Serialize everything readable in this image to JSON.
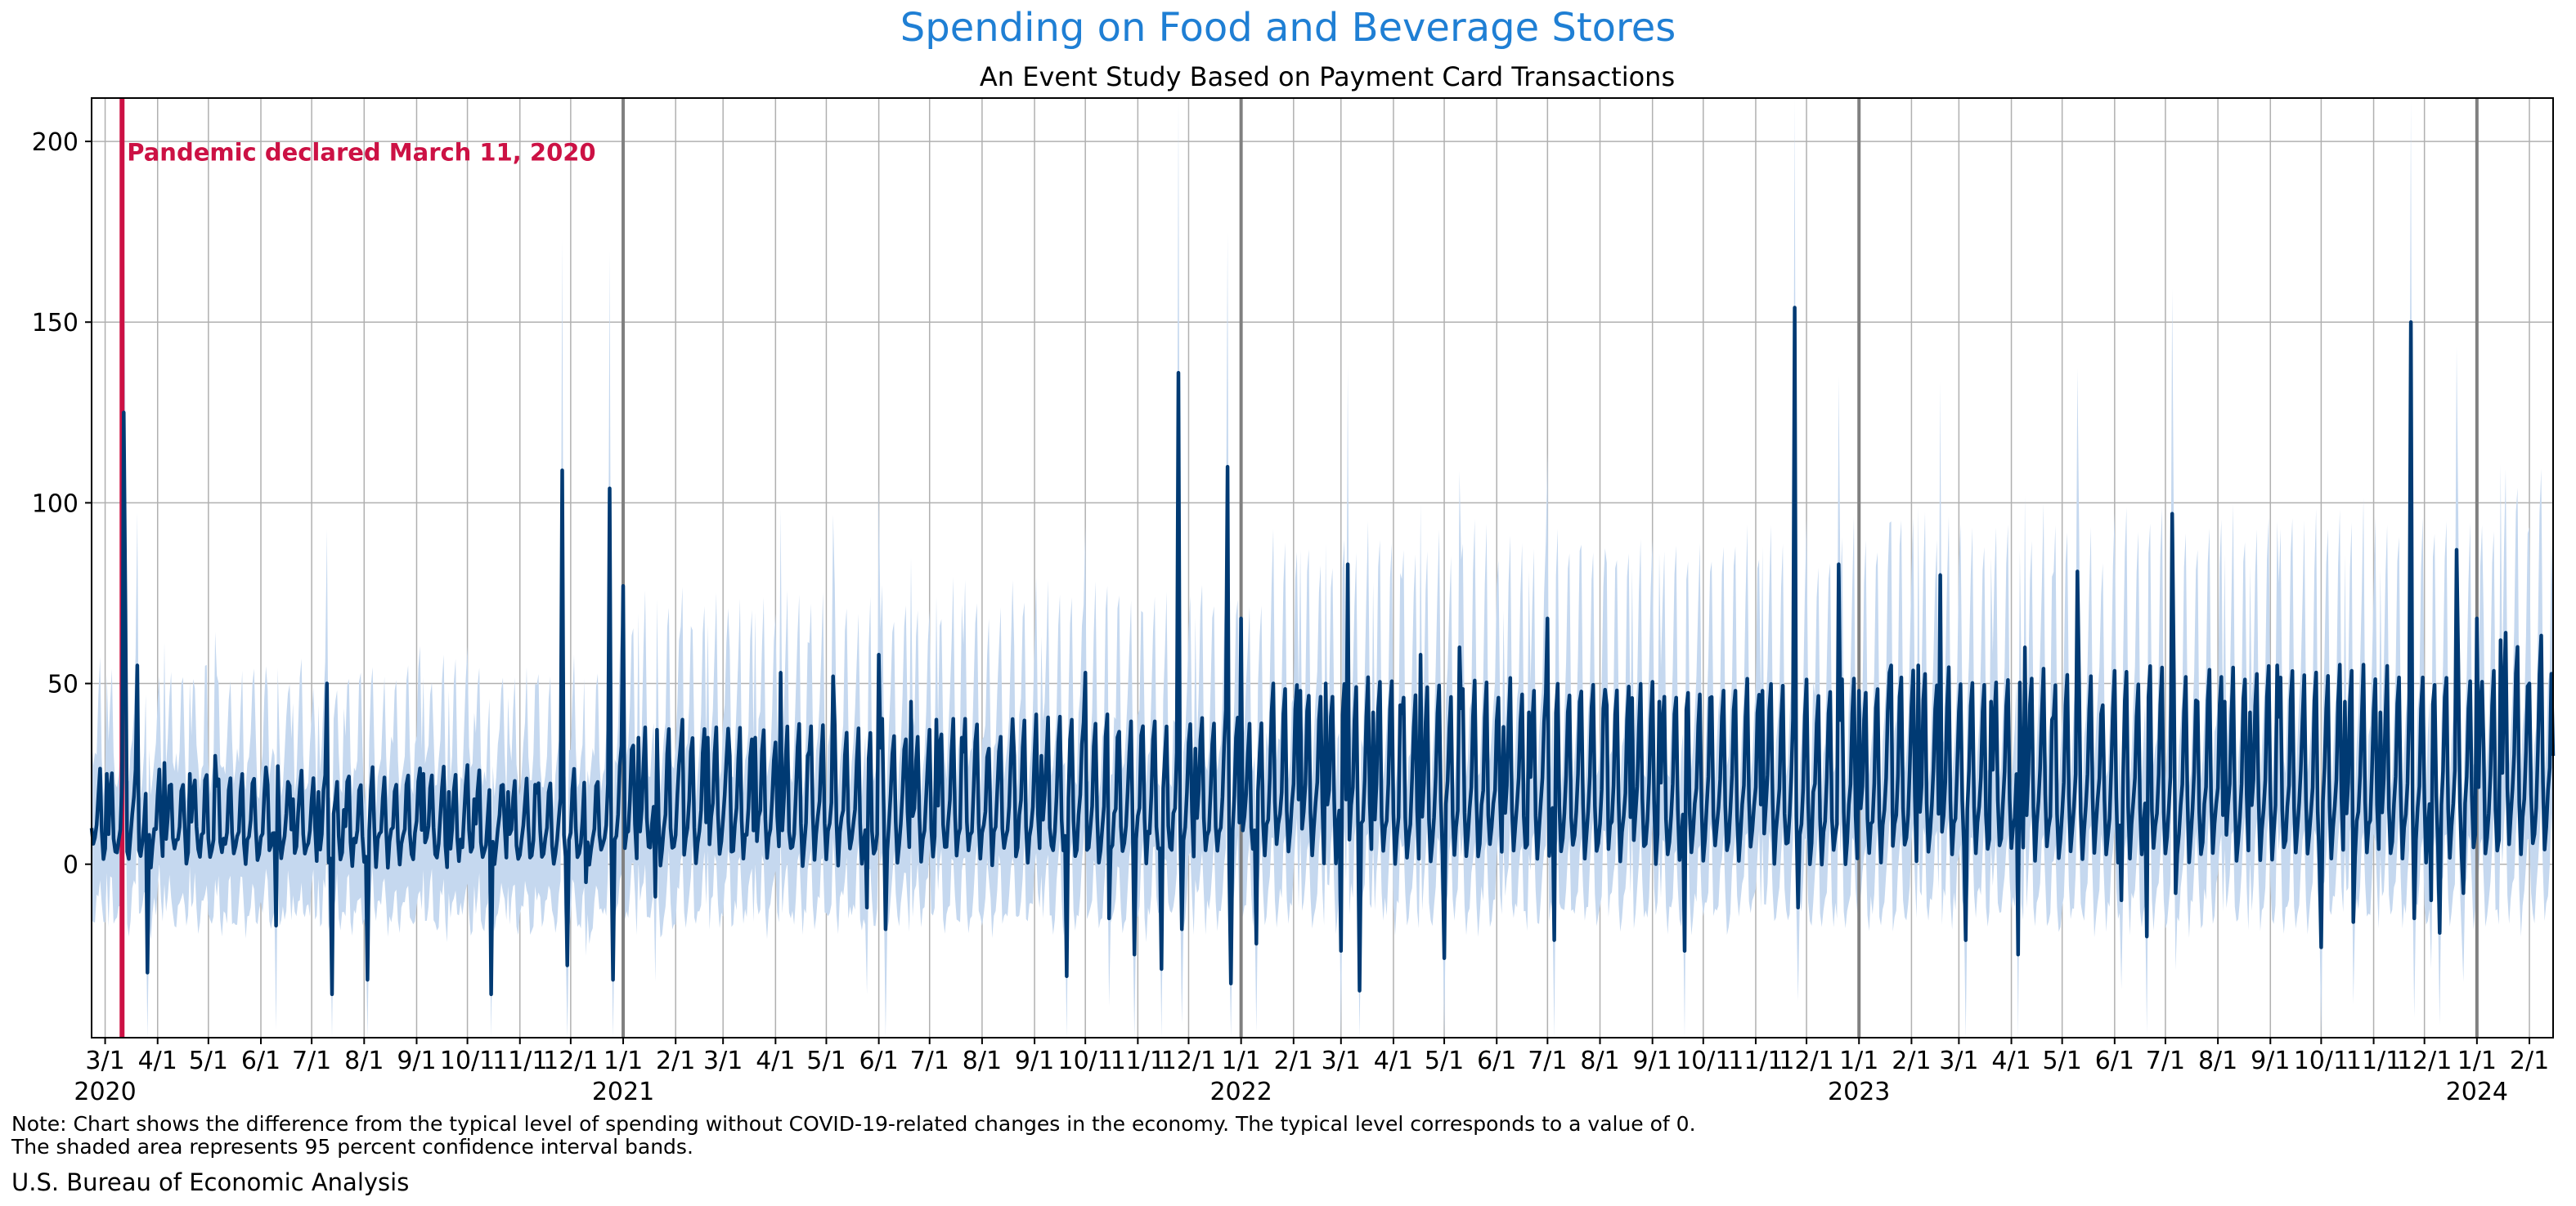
{
  "chart_data": {
    "type": "line",
    "title": "Spending on Food and Beverage Stores",
    "subtitle": "An Event Study Based on Payment Card Transactions",
    "xlabel": "",
    "ylabel": "",
    "x_range": [
      "2020-02-22",
      "2024-02-15"
    ],
    "ylim": [
      -48,
      212
    ],
    "y_ticks": [
      0,
      50,
      100,
      150,
      200
    ],
    "x_ticks": [
      {
        "date": "2020-03-01",
        "label": "3/1"
      },
      {
        "date": "2020-04-01",
        "label": "4/1"
      },
      {
        "date": "2020-05-01",
        "label": "5/1"
      },
      {
        "date": "2020-06-01",
        "label": "6/1"
      },
      {
        "date": "2020-07-01",
        "label": "7/1"
      },
      {
        "date": "2020-08-01",
        "label": "8/1"
      },
      {
        "date": "2020-09-01",
        "label": "9/1"
      },
      {
        "date": "2020-10-01",
        "label": "10/1"
      },
      {
        "date": "2020-11-01",
        "label": "11/1"
      },
      {
        "date": "2020-12-01",
        "label": "12/1"
      },
      {
        "date": "2021-01-01",
        "label": "1/1"
      },
      {
        "date": "2021-02-01",
        "label": "2/1"
      },
      {
        "date": "2021-03-01",
        "label": "3/1"
      },
      {
        "date": "2021-04-01",
        "label": "4/1"
      },
      {
        "date": "2021-05-01",
        "label": "5/1"
      },
      {
        "date": "2021-06-01",
        "label": "6/1"
      },
      {
        "date": "2021-07-01",
        "label": "7/1"
      },
      {
        "date": "2021-08-01",
        "label": "8/1"
      },
      {
        "date": "2021-09-01",
        "label": "9/1"
      },
      {
        "date": "2021-10-01",
        "label": "10/1"
      },
      {
        "date": "2021-11-01",
        "label": "11/1"
      },
      {
        "date": "2021-12-01",
        "label": "12/1"
      },
      {
        "date": "2022-01-01",
        "label": "1/1"
      },
      {
        "date": "2022-02-01",
        "label": "2/1"
      },
      {
        "date": "2022-03-01",
        "label": "3/1"
      },
      {
        "date": "2022-04-01",
        "label": "4/1"
      },
      {
        "date": "2022-05-01",
        "label": "5/1"
      },
      {
        "date": "2022-06-01",
        "label": "6/1"
      },
      {
        "date": "2022-07-01",
        "label": "7/1"
      },
      {
        "date": "2022-08-01",
        "label": "8/1"
      },
      {
        "date": "2022-09-01",
        "label": "9/1"
      },
      {
        "date": "2022-10-01",
        "label": "10/1"
      },
      {
        "date": "2022-11-01",
        "label": "11/1"
      },
      {
        "date": "2022-12-01",
        "label": "12/1"
      },
      {
        "date": "2023-01-01",
        "label": "1/1"
      },
      {
        "date": "2023-02-01",
        "label": "2/1"
      },
      {
        "date": "2023-03-01",
        "label": "3/1"
      },
      {
        "date": "2023-04-01",
        "label": "4/1"
      },
      {
        "date": "2023-05-01",
        "label": "5/1"
      },
      {
        "date": "2023-06-01",
        "label": "6/1"
      },
      {
        "date": "2023-07-01",
        "label": "7/1"
      },
      {
        "date": "2023-08-01",
        "label": "8/1"
      },
      {
        "date": "2023-09-01",
        "label": "9/1"
      },
      {
        "date": "2023-10-01",
        "label": "10/1"
      },
      {
        "date": "2023-11-01",
        "label": "11/1"
      },
      {
        "date": "2023-12-01",
        "label": "12/1"
      },
      {
        "date": "2024-01-01",
        "label": "1/1"
      },
      {
        "date": "2024-02-01",
        "label": "2/1"
      }
    ],
    "year_labels": [
      {
        "date": "2020-03-01",
        "label": "2020"
      },
      {
        "date": "2021-01-01",
        "label": "2021"
      },
      {
        "date": "2022-01-01",
        "label": "2022"
      },
      {
        "date": "2023-01-01",
        "label": "2023"
      },
      {
        "date": "2024-01-01",
        "label": "2024"
      }
    ],
    "year_boundaries": [
      "2021-01-01",
      "2022-01-01",
      "2023-01-01",
      "2024-01-01"
    ],
    "grid": true,
    "event": {
      "date": "2020-03-11",
      "label": "Pandemic declared March 11, 2020"
    },
    "series": [
      {
        "kind": "line",
        "points": [
          [
            "2020-02-22",
            10
          ],
          [
            "2020-03-02",
            25
          ],
          [
            "2020-03-12",
            125
          ],
          [
            "2020-03-13",
            70
          ],
          [
            "2020-03-20",
            55
          ],
          [
            "2020-03-26",
            -30
          ],
          [
            "2020-04-05",
            28
          ],
          [
            "2020-04-20",
            25
          ],
          [
            "2020-05-05",
            30
          ],
          [
            "2020-05-20",
            20
          ],
          [
            "2020-06-05",
            22
          ],
          [
            "2020-06-10",
            -17
          ],
          [
            "2020-06-20",
            18
          ],
          [
            "2020-07-05",
            20
          ],
          [
            "2020-07-10",
            50
          ],
          [
            "2020-07-13",
            -36
          ],
          [
            "2020-07-20",
            15
          ],
          [
            "2020-08-03",
            -32
          ],
          [
            "2020-08-20",
            22
          ],
          [
            "2020-09-05",
            25
          ],
          [
            "2020-09-20",
            20
          ],
          [
            "2020-10-05",
            18
          ],
          [
            "2020-10-15",
            -36
          ],
          [
            "2020-10-25",
            20
          ],
          [
            "2020-11-10",
            22
          ],
          [
            "2020-11-26",
            109
          ],
          [
            "2020-11-29",
            -28
          ],
          [
            "2020-12-10",
            -5
          ],
          [
            "2020-12-24",
            104
          ],
          [
            "2020-12-26",
            -32
          ],
          [
            "2021-01-01",
            77
          ],
          [
            "2021-01-10",
            35
          ],
          [
            "2021-01-20",
            -9
          ],
          [
            "2021-02-05",
            40
          ],
          [
            "2021-02-20",
            35
          ],
          [
            "2021-03-05",
            30
          ],
          [
            "2021-03-20",
            35
          ],
          [
            "2021-04-04",
            53
          ],
          [
            "2021-04-20",
            30
          ],
          [
            "2021-05-05",
            52
          ],
          [
            "2021-05-25",
            -12
          ],
          [
            "2021-06-01",
            58
          ],
          [
            "2021-06-05",
            -18
          ],
          [
            "2021-06-20",
            45
          ],
          [
            "2021-07-05",
            40
          ],
          [
            "2021-07-20",
            35
          ],
          [
            "2021-08-05",
            32
          ],
          [
            "2021-08-20",
            30
          ],
          [
            "2021-09-05",
            30
          ],
          [
            "2021-09-20",
            -31
          ],
          [
            "2021-10-01",
            53
          ],
          [
            "2021-10-15",
            -15
          ],
          [
            "2021-10-30",
            -25
          ],
          [
            "2021-11-15",
            -29
          ],
          [
            "2021-11-25",
            136
          ],
          [
            "2021-11-27",
            -18
          ],
          [
            "2021-12-05",
            32
          ],
          [
            "2021-12-24",
            110
          ],
          [
            "2021-12-26",
            -33
          ],
          [
            "2022-01-01",
            68
          ],
          [
            "2022-01-10",
            -22
          ],
          [
            "2022-01-20",
            50
          ],
          [
            "2022-02-05",
            48
          ],
          [
            "2022-02-20",
            50
          ],
          [
            "2022-03-01",
            -24
          ],
          [
            "2022-03-05",
            83
          ],
          [
            "2022-03-12",
            -35
          ],
          [
            "2022-03-20",
            42
          ],
          [
            "2022-04-05",
            44
          ],
          [
            "2022-04-17",
            58
          ],
          [
            "2022-05-01",
            -26
          ],
          [
            "2022-05-10",
            60
          ],
          [
            "2022-06-05",
            38
          ],
          [
            "2022-06-20",
            42
          ],
          [
            "2022-07-01",
            68
          ],
          [
            "2022-07-05",
            -21
          ],
          [
            "2022-07-20",
            45
          ],
          [
            "2022-08-05",
            44
          ],
          [
            "2022-08-20",
            46
          ],
          [
            "2022-09-05",
            45
          ],
          [
            "2022-09-20",
            -24
          ],
          [
            "2022-10-05",
            46
          ],
          [
            "2022-10-20",
            48
          ],
          [
            "2022-11-05",
            48
          ],
          [
            "2022-11-24",
            154
          ],
          [
            "2022-11-26",
            -12
          ],
          [
            "2022-12-05",
            20
          ],
          [
            "2022-12-20",
            83
          ],
          [
            "2022-12-24",
            0
          ],
          [
            "2023-01-01",
            48
          ],
          [
            "2023-01-20",
            55
          ],
          [
            "2023-02-05",
            55
          ],
          [
            "2023-02-18",
            80
          ],
          [
            "2023-03-05",
            -21
          ],
          [
            "2023-03-20",
            45
          ],
          [
            "2023-04-05",
            -25
          ],
          [
            "2023-04-09",
            60
          ],
          [
            "2023-04-25",
            40
          ],
          [
            "2023-05-10",
            81
          ],
          [
            "2023-05-25",
            44
          ],
          [
            "2023-06-05",
            -10
          ],
          [
            "2023-06-20",
            -20
          ],
          [
            "2023-07-05",
            97
          ],
          [
            "2023-07-07",
            -8
          ],
          [
            "2023-07-20",
            45
          ],
          [
            "2023-08-05",
            45
          ],
          [
            "2023-08-20",
            42
          ],
          [
            "2023-09-05",
            55
          ],
          [
            "2023-09-20",
            40
          ],
          [
            "2023-10-01",
            -23
          ],
          [
            "2023-10-15",
            45
          ],
          [
            "2023-10-20",
            -16
          ],
          [
            "2023-11-05",
            42
          ],
          [
            "2023-11-23",
            150
          ],
          [
            "2023-11-25",
            -15
          ],
          [
            "2023-12-05",
            -10
          ],
          [
            "2023-12-10",
            -19
          ],
          [
            "2023-12-20",
            87
          ],
          [
            "2023-12-24",
            -8
          ],
          [
            "2024-01-01",
            68
          ],
          [
            "2024-01-05",
            32
          ],
          [
            "2024-01-15",
            62
          ],
          [
            "2024-02-01",
            50
          ],
          [
            "2024-02-15",
            30
          ]
        ]
      },
      {
        "kind": "band",
        "description_source": "95 percent confidence interval bands"
      }
    ]
  },
  "note_line1": "Note: Chart shows the difference from the typical level of spending without COVID-19-related changes in the economy. The typical level corresponds to a value of 0.",
  "note_line2": "The shaded area represents 95 percent confidence interval bands.",
  "source": "U.S. Bureau of Economic Analysis",
  "colors": {
    "title": "#1f7fd4",
    "line": "#003a73",
    "band": "#c5d8ef",
    "grid": "#b0b0b0",
    "year_line": "#808080",
    "event": "#cc1144"
  }
}
